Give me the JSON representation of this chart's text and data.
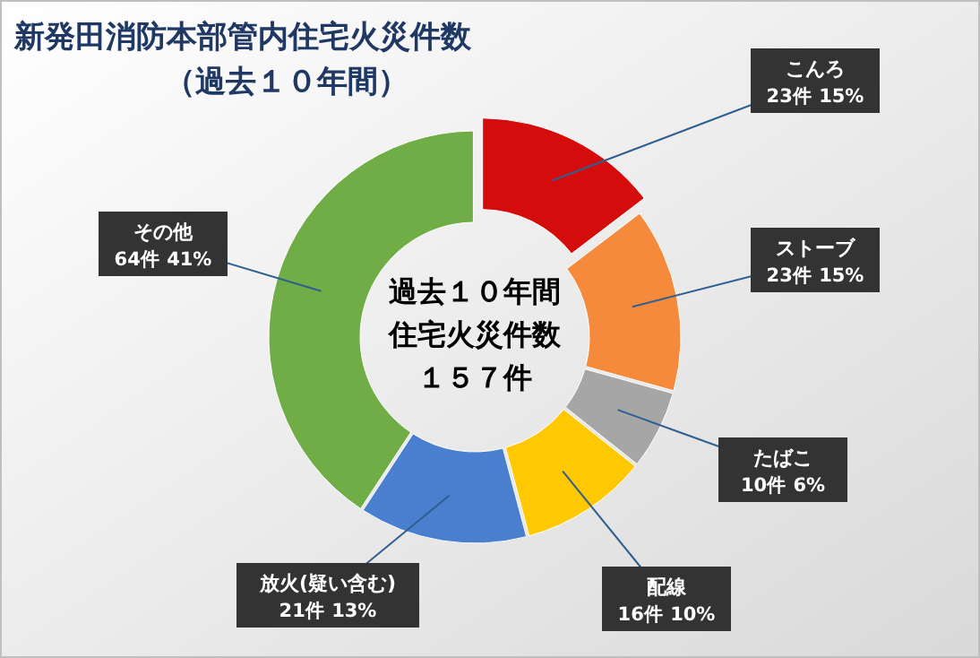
{
  "chart_data": {
    "type": "donut",
    "title": "新発田消防本部管内住宅火災件数",
    "subtitle": "（過去１０年間）",
    "categories": [
      "こんろ",
      "ストーブ",
      "たばこ",
      "配線",
      "放火(疑い含む)",
      "その他"
    ],
    "values": [
      23,
      23,
      10,
      16,
      21,
      64
    ],
    "value_labels": [
      "23件 15%",
      "23件 15%",
      "10件 6%",
      "16件 10%",
      "21件 13%",
      "64件 41%"
    ],
    "colors": [
      "#d40c0c",
      "#f58a3c",
      "#a6a6a6",
      "#ffc800",
      "#4a7fd0",
      "#70ad47"
    ],
    "annotations": [
      "過去１０年間",
      "住宅火災件数",
      "１５７件"
    ]
  }
}
